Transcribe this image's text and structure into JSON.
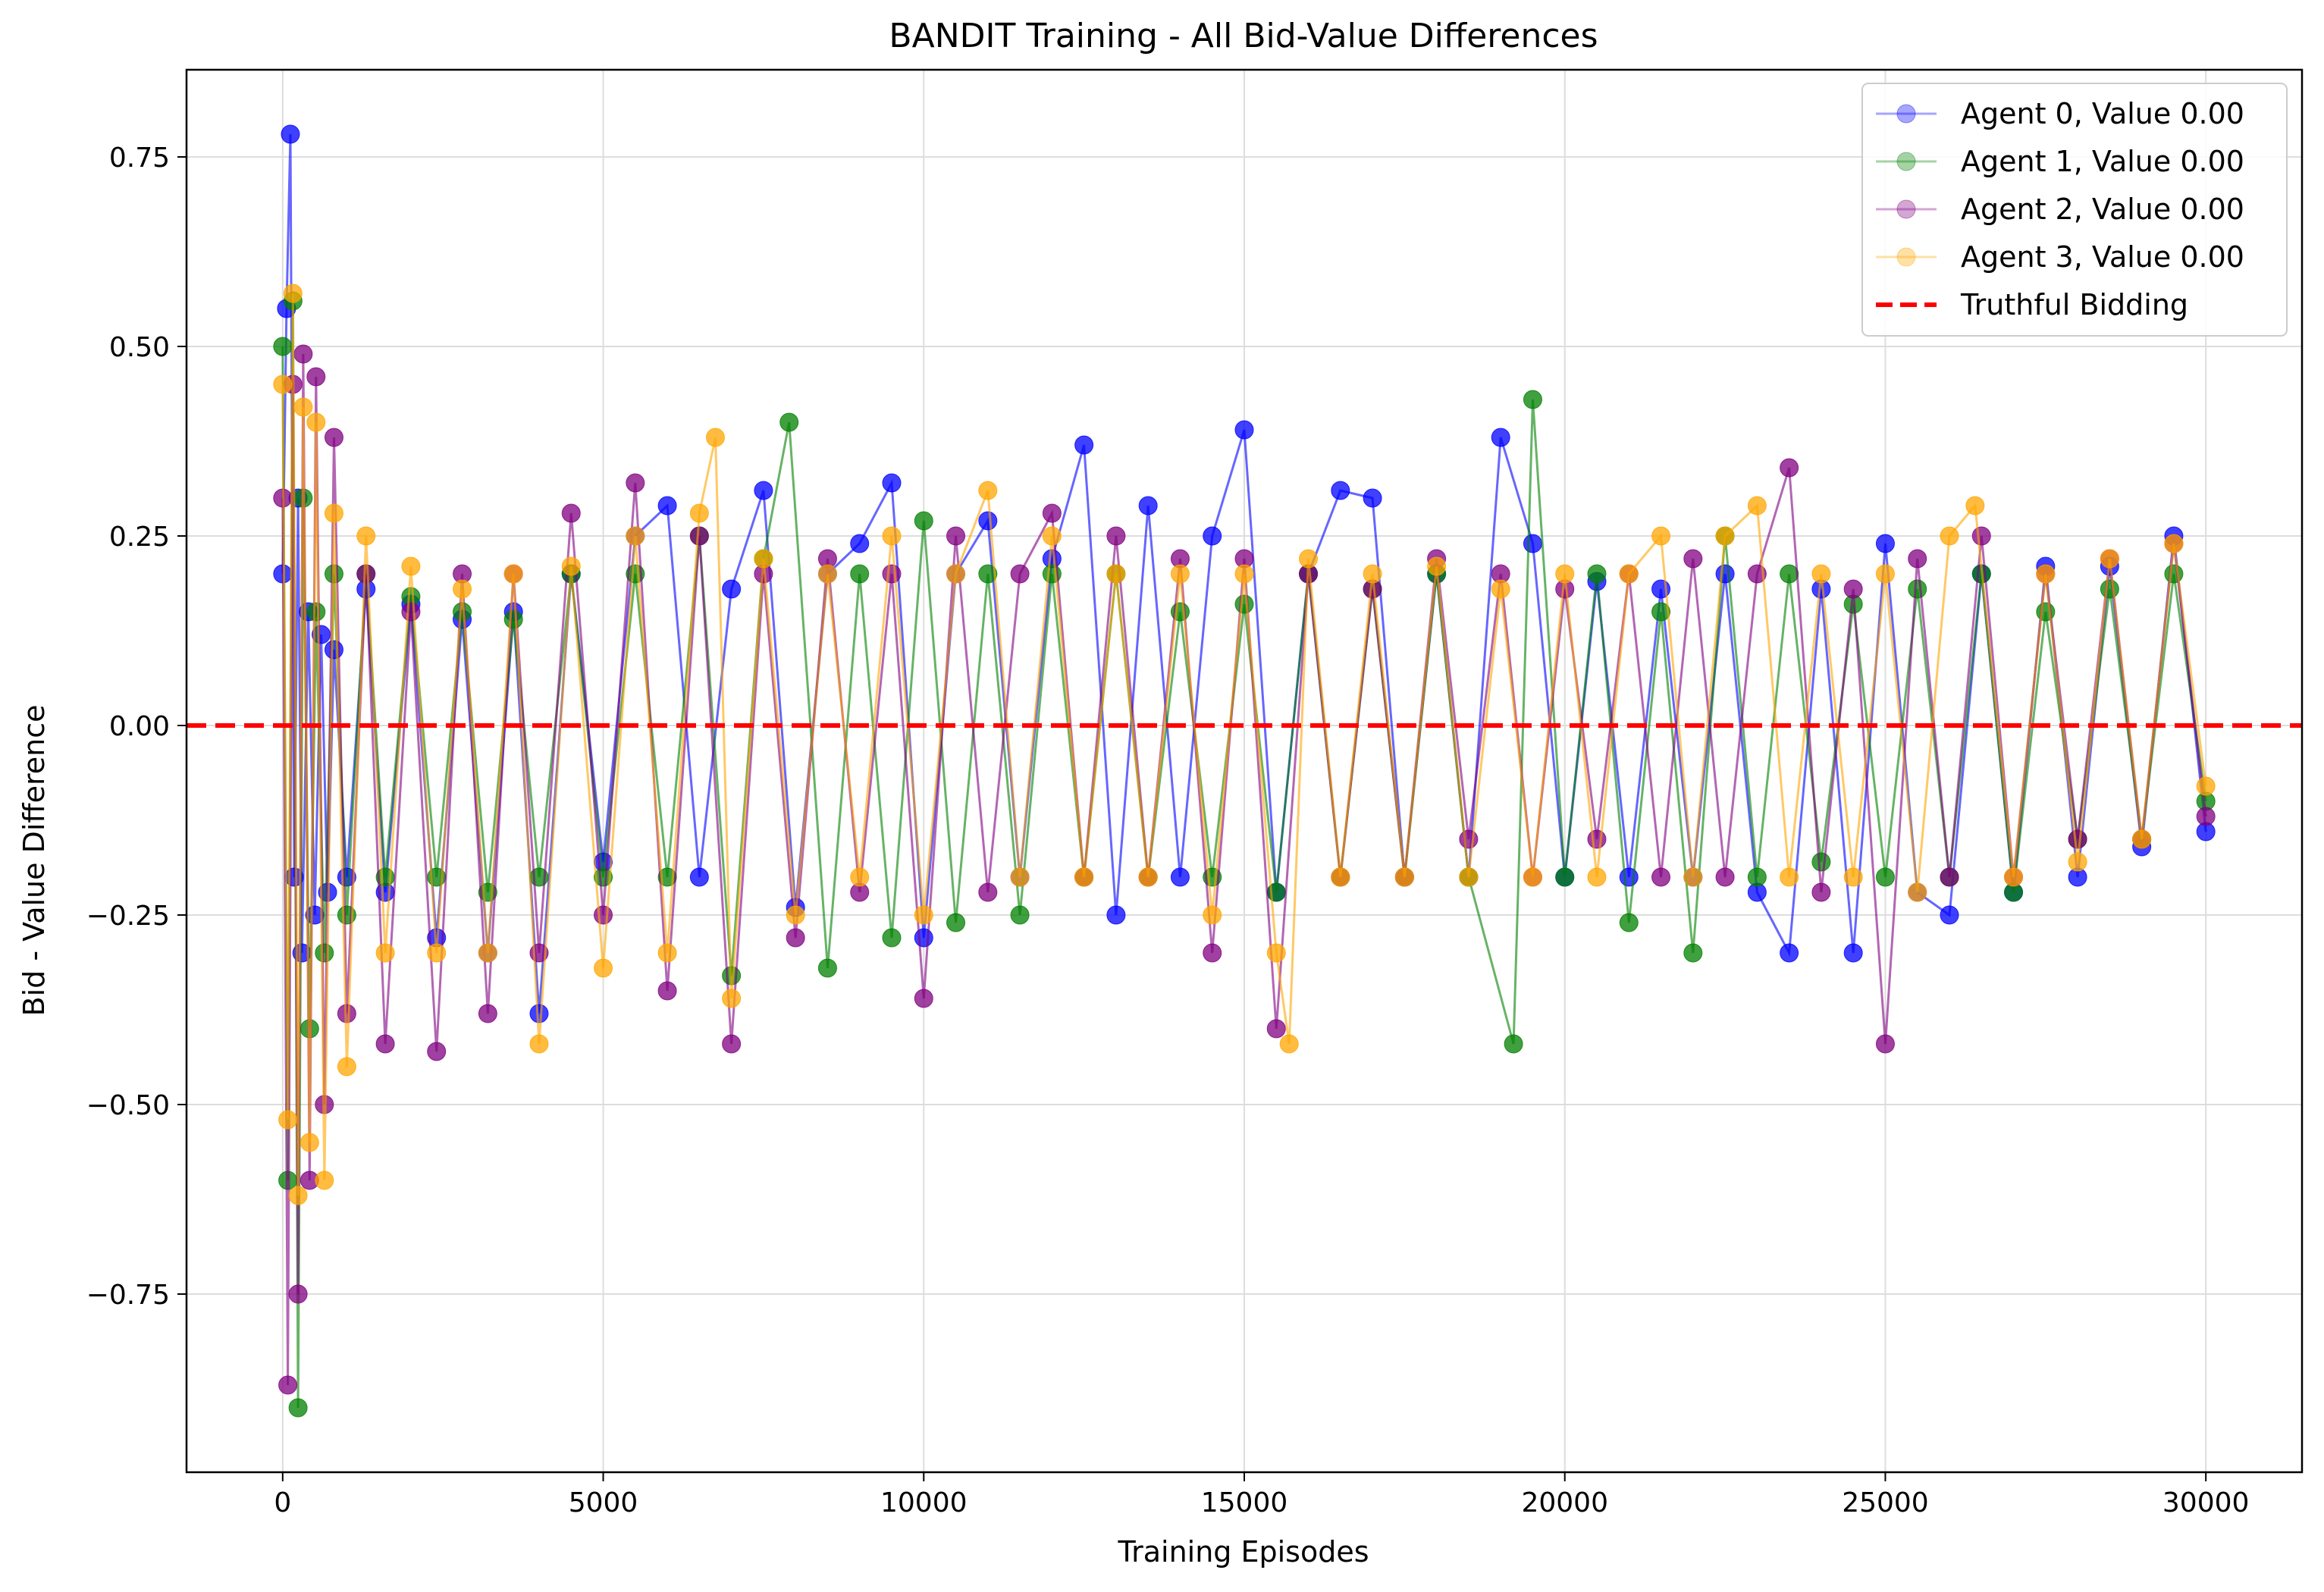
{
  "chart_data": {
    "type": "line",
    "title": "BANDIT Training - All Bid-Value Differences",
    "xlabel": "Training Episodes",
    "ylabel": "Bid - Value Difference",
    "xlim": [
      -1500,
      31500
    ],
    "ylim": [
      -0.985,
      0.865
    ],
    "xticks": [
      0,
      5000,
      10000,
      15000,
      20000,
      25000,
      30000
    ],
    "xtick_labels": [
      "0",
      "5000",
      "10000",
      "15000",
      "20000",
      "25000",
      "30000"
    ],
    "yticks": [
      0.75,
      0.5,
      0.25,
      0.0,
      -0.25,
      -0.5,
      -0.75
    ],
    "ytick_labels": [
      "0.75",
      "0.50",
      "0.25",
      "0.00",
      "−0.25",
      "−0.50",
      "−0.75"
    ],
    "grid": true,
    "legend_position": "top-right",
    "marker": "circle",
    "reference_line": {
      "name": "Truthful Bidding",
      "y": 0.0,
      "color": "#ff0000",
      "style": "dashed"
    },
    "series": [
      {
        "name": "Agent 0, Value 0.00",
        "color": "#0000ff",
        "x": [
          0,
          60,
          120,
          180,
          240,
          300,
          400,
          500,
          600,
          700,
          800,
          1000,
          1300,
          1600,
          2000,
          2400,
          2800,
          3200,
          3600,
          4000,
          4500,
          5000,
          5500,
          6000,
          6500,
          7000,
          7500,
          8000,
          8500,
          9000,
          9500,
          10000,
          10500,
          11000,
          11500,
          12000,
          12500,
          13000,
          13500,
          14000,
          14500,
          15000,
          15500,
          16000,
          16500,
          17000,
          17500,
          18000,
          18500,
          19000,
          19500,
          20000,
          20500,
          21000,
          21500,
          22000,
          22500,
          23000,
          23500,
          24000,
          24500,
          25000,
          25500,
          26000,
          26500,
          27000,
          27500,
          28000,
          28500,
          29000,
          29500,
          30000
        ],
        "y": [
          0.2,
          0.55,
          0.78,
          -0.2,
          0.3,
          -0.3,
          0.15,
          -0.25,
          0.12,
          -0.22,
          0.1,
          -0.2,
          0.18,
          -0.22,
          0.16,
          -0.28,
          0.14,
          -0.3,
          0.15,
          -0.38,
          0.2,
          -0.18,
          0.25,
          0.29,
          -0.2,
          0.18,
          0.31,
          -0.24,
          0.2,
          0.24,
          0.32,
          -0.28,
          0.2,
          0.27,
          -0.2,
          0.22,
          0.37,
          -0.25,
          0.29,
          -0.2,
          0.25,
          0.39,
          -0.22,
          0.2,
          0.31,
          0.3,
          -0.2,
          0.2,
          -0.2,
          0.38,
          0.24,
          -0.2,
          0.19,
          -0.2,
          0.18,
          -0.2,
          0.2,
          -0.22,
          -0.3,
          0.18,
          -0.3,
          0.24,
          -0.22,
          -0.25,
          0.2,
          -0.22,
          0.21,
          -0.2,
          0.21,
          -0.16,
          0.25,
          -0.14
        ]
      },
      {
        "name": "Agent 1, Value 0.00",
        "color": "#008000",
        "x": [
          0,
          80,
          160,
          240,
          320,
          420,
          520,
          650,
          800,
          1000,
          1300,
          1600,
          2000,
          2400,
          2800,
          3200,
          3600,
          4000,
          4500,
          5000,
          5500,
          6000,
          6500,
          7000,
          7500,
          7900,
          8500,
          9000,
          9500,
          10000,
          10500,
          11000,
          11500,
          12000,
          12500,
          13000,
          13500,
          14000,
          14500,
          15000,
          15500,
          16000,
          16500,
          17000,
          17500,
          18000,
          18500,
          19200,
          19500,
          20000,
          20500,
          21000,
          21500,
          22000,
          22500,
          23000,
          23500,
          24000,
          24500,
          25000,
          25500,
          26000,
          26500,
          27000,
          27500,
          28000,
          28500,
          29000,
          29500,
          30000
        ],
        "y": [
          0.5,
          -0.6,
          0.56,
          -0.9,
          0.3,
          -0.4,
          0.15,
          -0.3,
          0.2,
          -0.25,
          0.2,
          -0.2,
          0.17,
          -0.2,
          0.15,
          -0.22,
          0.14,
          -0.2,
          0.2,
          -0.2,
          0.2,
          -0.2,
          0.25,
          -0.33,
          0.22,
          0.4,
          -0.32,
          0.2,
          -0.28,
          0.27,
          -0.26,
          0.2,
          -0.25,
          0.2,
          -0.2,
          0.2,
          -0.2,
          0.15,
          -0.2,
          0.16,
          -0.22,
          0.2,
          -0.2,
          0.18,
          -0.2,
          0.2,
          -0.2,
          -0.42,
          0.43,
          -0.2,
          0.2,
          -0.26,
          0.15,
          -0.3,
          0.25,
          -0.2,
          0.2,
          -0.18,
          0.16,
          -0.2,
          0.18,
          -0.2,
          0.2,
          -0.22,
          0.15,
          -0.15,
          0.18,
          -0.15,
          0.2,
          -0.1
        ]
      },
      {
        "name": "Agent 2, Value 0.00",
        "color": "#800080",
        "x": [
          0,
          80,
          160,
          240,
          320,
          420,
          520,
          650,
          800,
          1000,
          1300,
          1600,
          2000,
          2400,
          2800,
          3200,
          3600,
          4000,
          4500,
          5000,
          5500,
          6000,
          6500,
          7000,
          7500,
          8000,
          8500,
          9000,
          9500,
          10000,
          10500,
          11000,
          11500,
          12000,
          12500,
          13000,
          13500,
          14000,
          14500,
          15000,
          15500,
          16000,
          16500,
          17000,
          17500,
          18000,
          18500,
          19000,
          19500,
          20000,
          20500,
          21000,
          21500,
          22000,
          22500,
          23000,
          23500,
          24000,
          24500,
          25000,
          25500,
          26000,
          26500,
          27000,
          27500,
          28000,
          28500,
          29000,
          29500,
          30000
        ],
        "y": [
          0.3,
          -0.87,
          0.45,
          -0.75,
          0.49,
          -0.6,
          0.46,
          -0.5,
          0.38,
          -0.38,
          0.2,
          -0.42,
          0.15,
          -0.43,
          0.2,
          -0.38,
          0.2,
          -0.3,
          0.28,
          -0.25,
          0.32,
          -0.35,
          0.25,
          -0.42,
          0.2,
          -0.28,
          0.22,
          -0.22,
          0.2,
          -0.36,
          0.25,
          -0.22,
          0.2,
          0.28,
          -0.2,
          0.25,
          -0.2,
          0.22,
          -0.3,
          0.22,
          -0.4,
          0.2,
          -0.2,
          0.18,
          -0.2,
          0.22,
          -0.15,
          0.2,
          -0.2,
          0.18,
          -0.15,
          0.2,
          -0.2,
          0.22,
          -0.2,
          0.2,
          0.34,
          -0.22,
          0.18,
          -0.42,
          0.22,
          -0.2,
          0.25,
          -0.2,
          0.2,
          -0.15,
          0.22,
          -0.15,
          0.24,
          -0.12
        ]
      },
      {
        "name": "Agent 3, Value 0.00",
        "color": "#ffa500",
        "x": [
          0,
          80,
          160,
          240,
          320,
          420,
          520,
          650,
          800,
          1000,
          1300,
          1600,
          2000,
          2400,
          2800,
          3200,
          3600,
          4000,
          4500,
          5000,
          5500,
          6000,
          6500,
          6750,
          7000,
          7500,
          8000,
          8500,
          9000,
          9500,
          10000,
          10500,
          11000,
          11500,
          12000,
          12500,
          13000,
          13500,
          14000,
          14500,
          15000,
          15500,
          15700,
          16000,
          16500,
          17000,
          17500,
          18000,
          18500,
          19000,
          19500,
          20000,
          20500,
          21000,
          21500,
          22000,
          22500,
          23000,
          23500,
          24000,
          24500,
          25000,
          25500,
          26000,
          26400,
          27000,
          27500,
          28000,
          28500,
          29000,
          29500,
          30000
        ],
        "y": [
          0.45,
          -0.52,
          0.57,
          -0.62,
          0.42,
          -0.55,
          0.4,
          -0.6,
          0.28,
          -0.45,
          0.25,
          -0.3,
          0.21,
          -0.3,
          0.18,
          -0.3,
          0.2,
          -0.42,
          0.21,
          -0.32,
          0.25,
          -0.3,
          0.28,
          0.38,
          -0.36,
          0.22,
          -0.25,
          0.2,
          -0.2,
          0.25,
          -0.25,
          0.2,
          0.31,
          -0.2,
          0.25,
          -0.2,
          0.2,
          -0.2,
          0.2,
          -0.25,
          0.2,
          -0.3,
          -0.42,
          0.22,
          -0.2,
          0.2,
          -0.2,
          0.21,
          -0.2,
          0.18,
          -0.2,
          0.2,
          -0.2,
          0.2,
          0.25,
          -0.2,
          0.25,
          0.29,
          -0.2,
          0.2,
          -0.2,
          0.2,
          -0.22,
          0.25,
          0.29,
          -0.2,
          0.2,
          -0.18,
          0.22,
          -0.15,
          0.24,
          -0.08
        ]
      }
    ]
  }
}
